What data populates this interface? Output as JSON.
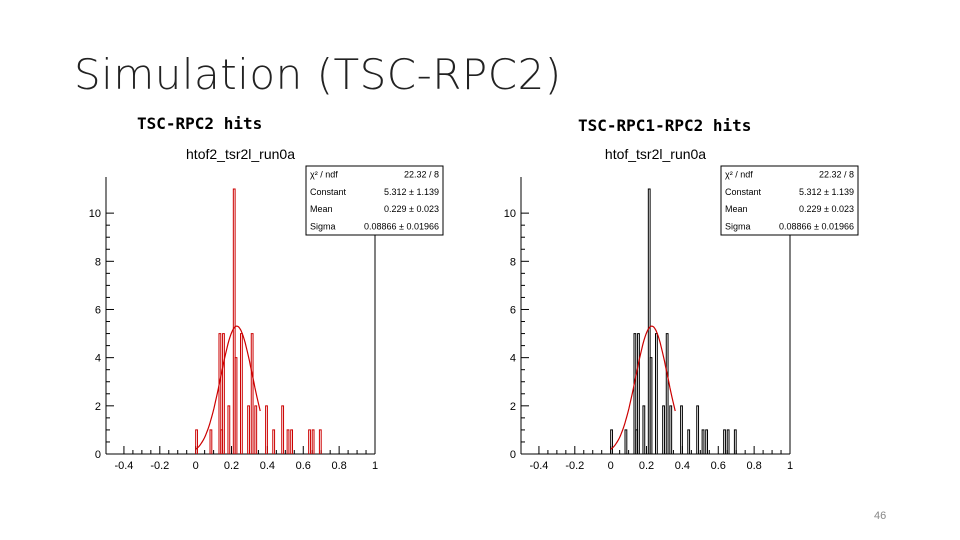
{
  "slide": {
    "title": "Simulation (TSC-RPC2)",
    "page_number": "46"
  },
  "chart_data": [
    {
      "type": "bar",
      "caption": "TSC-RPC2 hits",
      "title": "htof2_tsr2l_run0a",
      "xlim": [
        -0.5,
        1.0
      ],
      "ylim": [
        0,
        11.5
      ],
      "x_ticks": [
        "-0.4",
        "-0.2",
        "0",
        "0.2",
        "0.4",
        "0.6",
        "0.8",
        "1"
      ],
      "y_ticks": [
        "0",
        "2",
        "4",
        "6",
        "8",
        "10"
      ],
      "hist_color": "#cc0000",
      "fit_color": "#cc0000",
      "bins": [
        [
          0.0,
          0.01,
          1
        ],
        [
          0.08,
          0.09,
          1
        ],
        [
          0.13,
          0.14,
          5
        ],
        [
          0.14,
          0.15,
          1
        ],
        [
          0.15,
          0.16,
          5
        ],
        [
          0.18,
          0.19,
          2
        ],
        [
          0.21,
          0.22,
          11
        ],
        [
          0.22,
          0.23,
          4
        ],
        [
          0.25,
          0.26,
          5
        ],
        [
          0.29,
          0.3,
          2
        ],
        [
          0.31,
          0.32,
          5
        ],
        [
          0.33,
          0.34,
          2
        ],
        [
          0.39,
          0.4,
          2
        ],
        [
          0.43,
          0.44,
          1
        ],
        [
          0.48,
          0.49,
          2
        ],
        [
          0.51,
          0.52,
          1
        ],
        [
          0.53,
          0.54,
          1
        ],
        [
          0.63,
          0.64,
          1
        ],
        [
          0.65,
          0.66,
          1
        ],
        [
          0.69,
          0.7,
          1
        ]
      ],
      "fit": {
        "amplitude": 5.312,
        "mean": 0.229,
        "sigma": 0.08866,
        "range": [
          0.0,
          0.36
        ]
      },
      "stats": [
        {
          "label": "χ² / ndf",
          "value": "22.32 / 8"
        },
        {
          "label": "Constant",
          "value": "5.312 ± 1.139"
        },
        {
          "label": "Mean",
          "value": "0.229 ± 0.023"
        },
        {
          "label": "Sigma",
          "value": "0.08866 ± 0.01966"
        }
      ]
    },
    {
      "type": "bar",
      "caption": "TSC-RPC1-RPC2 hits",
      "title": "htof_tsr2l_run0a",
      "xlim": [
        -0.5,
        1.0
      ],
      "ylim": [
        0,
        11.5
      ],
      "x_ticks": [
        "-0.4",
        "-0.2",
        "0",
        "0.2",
        "0.4",
        "0.6",
        "0.8",
        "1"
      ],
      "y_ticks": [
        "0",
        "2",
        "4",
        "6",
        "8",
        "10"
      ],
      "hist_color": "#000000",
      "fit_color": "#cc0000",
      "bins": [
        [
          0.0,
          0.01,
          1
        ],
        [
          0.08,
          0.09,
          1
        ],
        [
          0.13,
          0.14,
          5
        ],
        [
          0.14,
          0.15,
          1
        ],
        [
          0.15,
          0.16,
          5
        ],
        [
          0.18,
          0.19,
          2
        ],
        [
          0.21,
          0.22,
          11
        ],
        [
          0.22,
          0.23,
          4
        ],
        [
          0.25,
          0.26,
          5
        ],
        [
          0.29,
          0.3,
          2
        ],
        [
          0.31,
          0.32,
          5
        ],
        [
          0.33,
          0.34,
          2
        ],
        [
          0.39,
          0.4,
          2
        ],
        [
          0.43,
          0.44,
          1
        ],
        [
          0.48,
          0.49,
          2
        ],
        [
          0.51,
          0.52,
          1
        ],
        [
          0.53,
          0.54,
          1
        ],
        [
          0.63,
          0.64,
          1
        ],
        [
          0.65,
          0.66,
          1
        ],
        [
          0.69,
          0.7,
          1
        ]
      ],
      "fit": {
        "amplitude": 5.312,
        "mean": 0.229,
        "sigma": 0.08866,
        "range": [
          0.0,
          0.36
        ]
      },
      "stats": [
        {
          "label": "χ² / ndf",
          "value": "22.32 / 8"
        },
        {
          "label": "Constant",
          "value": "5.312 ± 1.139"
        },
        {
          "label": "Mean",
          "value": "0.229 ± 0.023"
        },
        {
          "label": "Sigma",
          "value": "0.08866 ± 0.01966"
        }
      ]
    }
  ]
}
